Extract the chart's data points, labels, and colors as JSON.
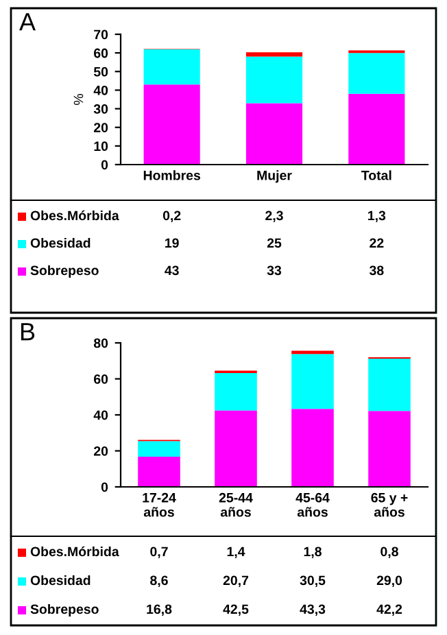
{
  "chart_data": [
    {
      "type": "bar",
      "title": "A",
      "ylabel": "%",
      "stacked": true,
      "categories": [
        "Hombres",
        "Mujer",
        "Total"
      ],
      "ylim": [
        0,
        70
      ],
      "yticks": [
        0,
        10,
        20,
        30,
        40,
        50,
        60,
        70
      ],
      "grid": false,
      "legend": "bottom",
      "series": [
        {
          "name": "Sobrepeso",
          "color": "#ff00ff",
          "values": [
            43,
            33,
            38
          ],
          "value_labels": [
            "43",
            "33",
            "38"
          ]
        },
        {
          "name": "Obesidad",
          "color": "#00ffff",
          "values": [
            19,
            25,
            22
          ],
          "value_labels": [
            "19",
            "25",
            "22"
          ]
        },
        {
          "name": "Obes.Mórbida",
          "color": "#ff0000",
          "values": [
            0.2,
            2.3,
            1.3
          ],
          "value_labels": [
            "0,2",
            "2,3",
            "1,3"
          ]
        }
      ]
    },
    {
      "type": "bar",
      "title": "B",
      "stacked": true,
      "categories": [
        "17-24\naños",
        "25-44\naños",
        "45-64\naños",
        "65 y +\naños"
      ],
      "ylim": [
        0,
        80
      ],
      "yticks": [
        0,
        20,
        40,
        60,
        80
      ],
      "grid": false,
      "legend": "bottom",
      "series": [
        {
          "name": "Sobrepeso",
          "color": "#ff00ff",
          "values": [
            16.8,
            42.5,
            43.3,
            42.2
          ],
          "value_labels": [
            "16,8",
            "42,5",
            "43,3",
            "42,2"
          ]
        },
        {
          "name": "Obesidad",
          "color": "#00ffff",
          "values": [
            8.6,
            20.7,
            30.5,
            29.0
          ],
          "value_labels": [
            "8,6",
            "20,7",
            "30,5",
            "29,0"
          ]
        },
        {
          "name": "Obes.Mórbida",
          "color": "#ff0000",
          "values": [
            0.7,
            1.4,
            1.8,
            0.8
          ],
          "value_labels": [
            "0,7",
            "1,4",
            "1,8",
            "0,8"
          ]
        }
      ]
    }
  ]
}
